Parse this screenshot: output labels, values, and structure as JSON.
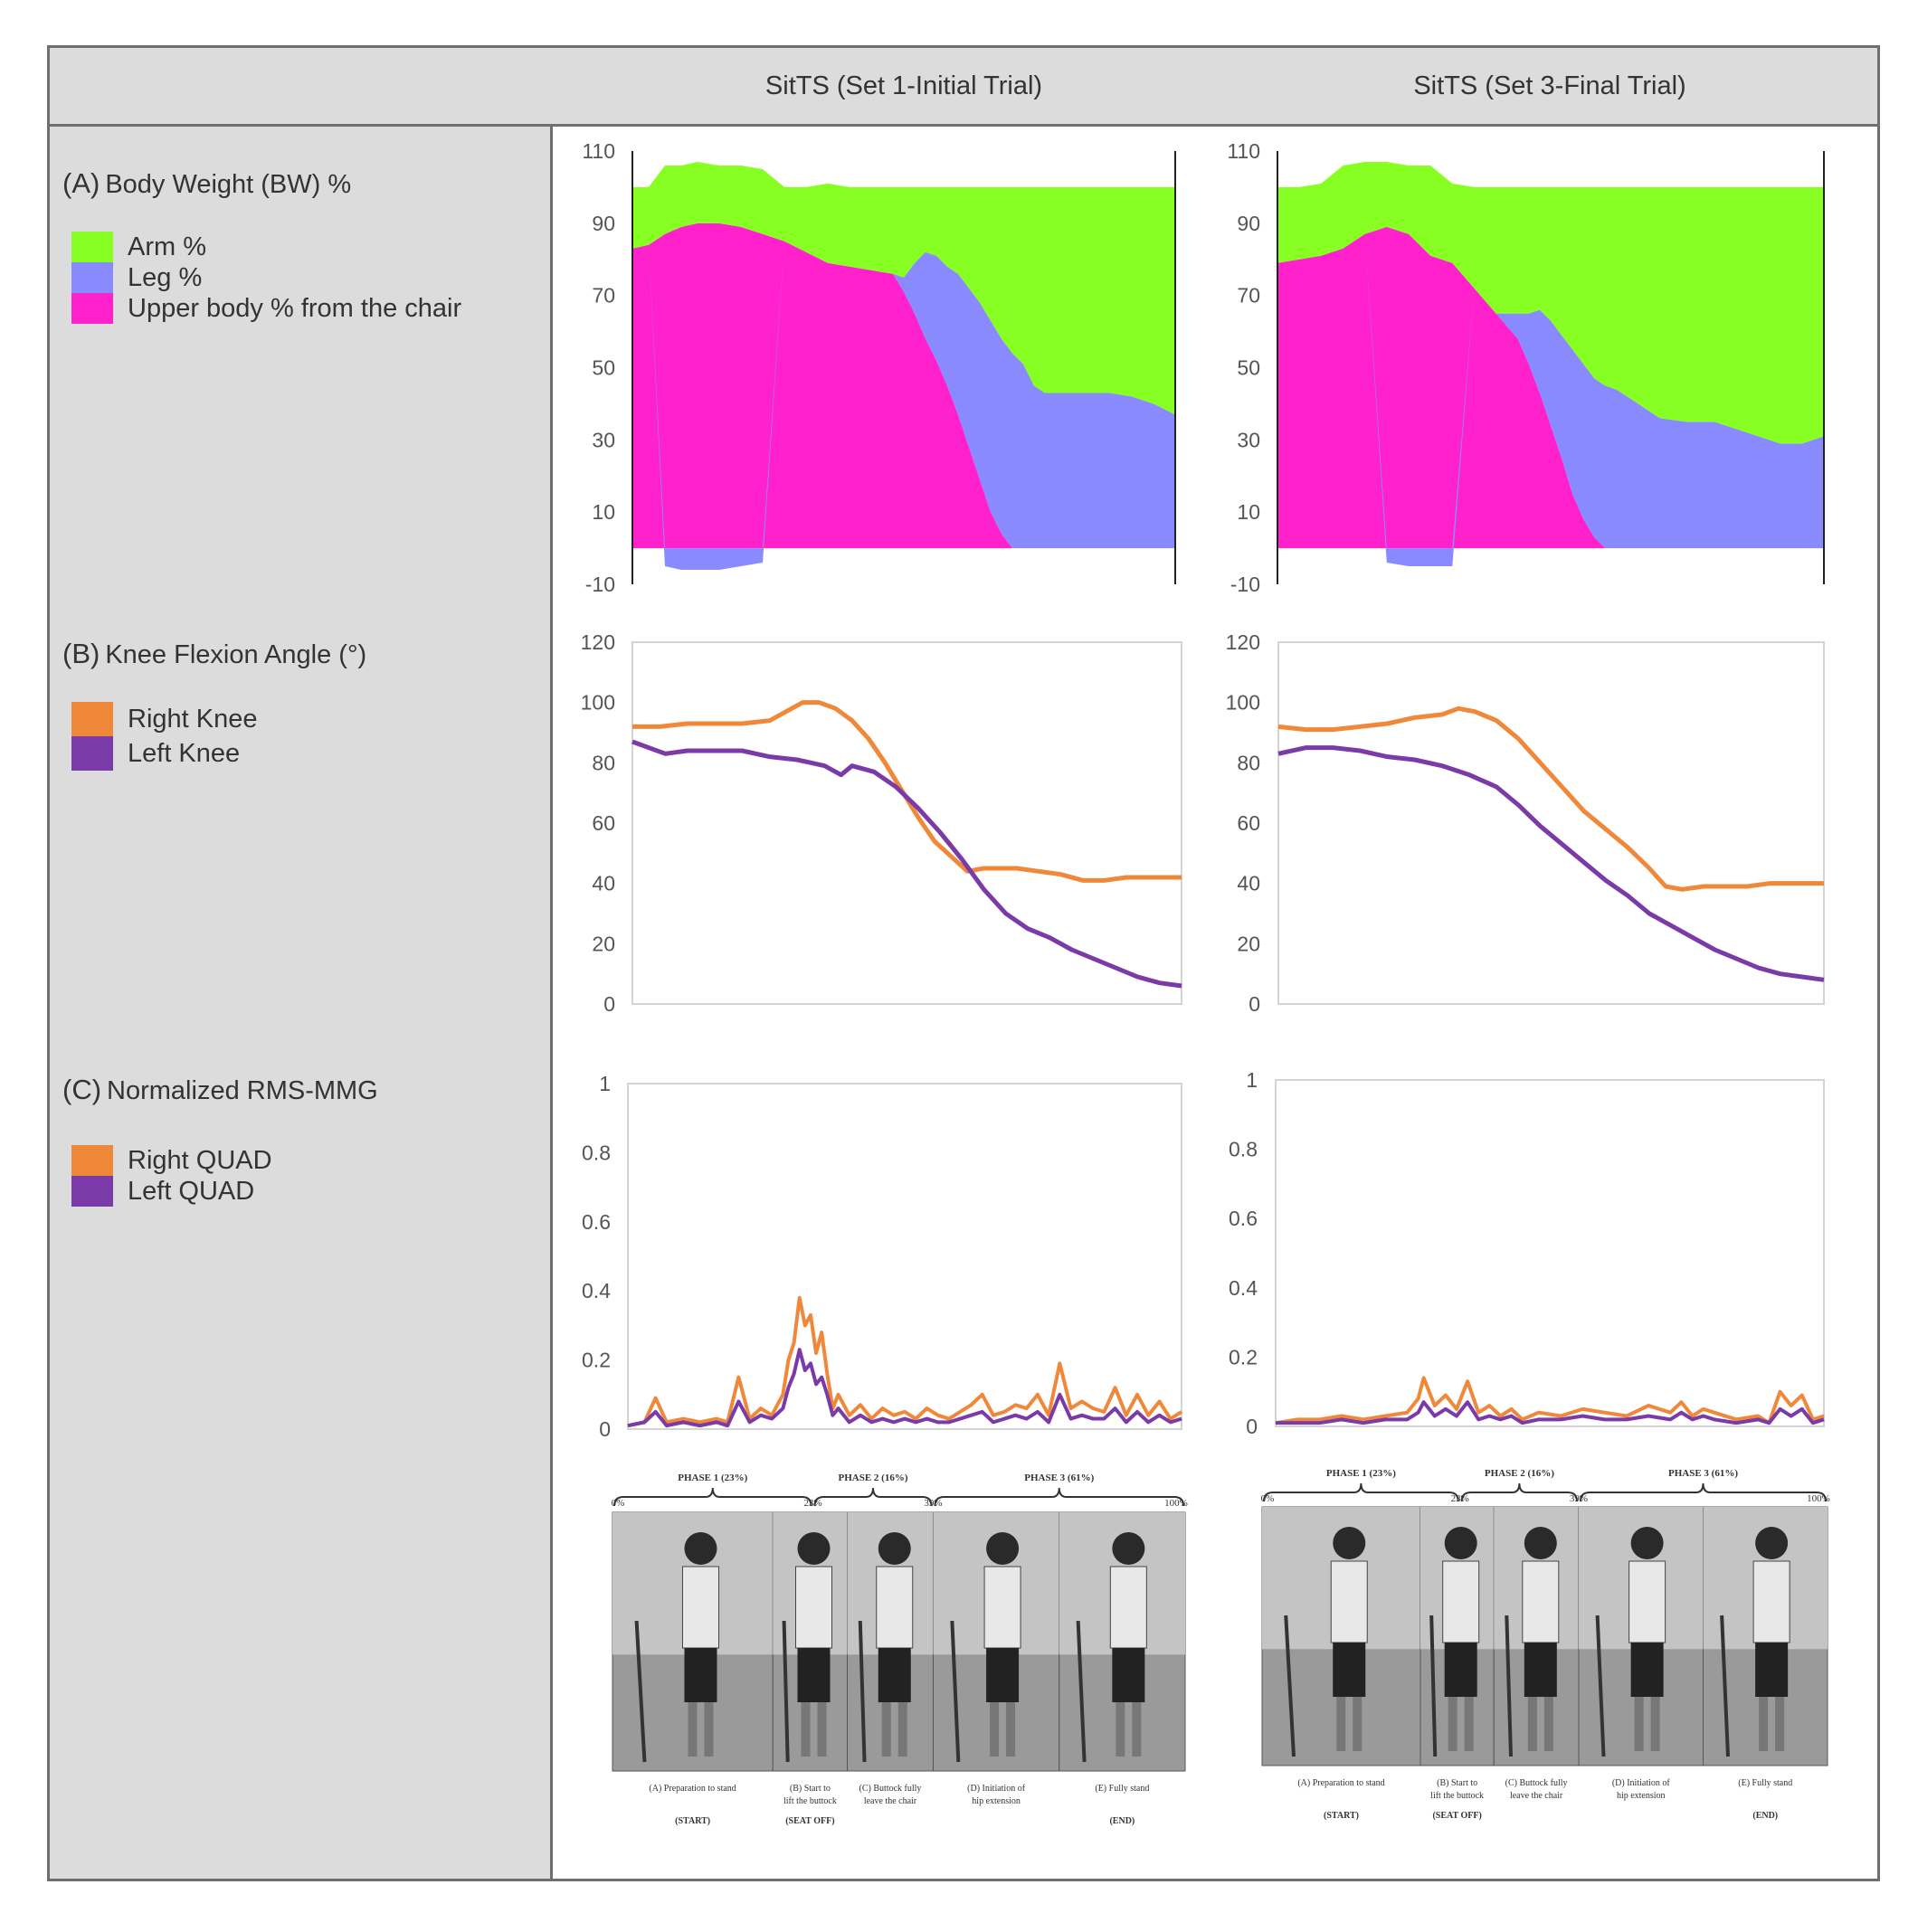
{
  "header": {
    "col1": "SitTS (Set 1-Initial Trial)",
    "col2": "SitTS (Set 3-Final Trial)"
  },
  "panels": {
    "a": {
      "label": "(A)",
      "title": "Body Weight (BW) %",
      "legend": [
        {
          "name": "Arm %",
          "color": "#88ff22"
        },
        {
          "name": "Leg %",
          "color": "#8a8aff"
        },
        {
          "name": "Upper body %  from the chair",
          "color": "#ff22cc"
        }
      ]
    },
    "b": {
      "label": "(B)",
      "title": "Knee Flexion Angle (°)",
      "legend": [
        {
          "name": "Right Knee",
          "color": "#f0883a"
        },
        {
          "name": "Left Knee",
          "color": "#7a3aa8"
        }
      ]
    },
    "c": {
      "label": "(C)",
      "title": "Normalized RMS-MMG",
      "legend": [
        {
          "name": "Right QUAD",
          "color": "#f0883a"
        },
        {
          "name": "Left QUAD",
          "color": "#7a3aa8"
        }
      ]
    }
  },
  "chart_data": [
    {
      "id": "bw_set1",
      "type": "area",
      "stacked": true,
      "ylim": [
        -10,
        110
      ],
      "yticks": [
        -10,
        10,
        30,
        50,
        70,
        90,
        110
      ],
      "x": [
        0,
        3,
        6,
        9,
        12,
        16,
        20,
        24,
        28,
        32,
        36,
        40,
        44,
        48,
        50,
        52,
        54,
        56,
        58,
        60,
        62,
        64,
        66,
        68,
        70,
        72,
        74,
        76,
        80,
        84,
        88,
        92,
        96,
        100
      ],
      "series": [
        {
          "name": "Upper body %  from the chair",
          "color": "#ff22cc",
          "values": [
            83,
            84,
            87,
            89,
            90,
            90,
            89,
            87,
            85,
            82,
            79,
            78,
            77,
            76,
            71,
            65,
            58,
            52,
            45,
            37,
            28,
            19,
            10,
            4,
            0,
            0,
            0,
            0,
            0,
            0,
            0,
            0,
            0,
            0
          ]
        },
        {
          "name": "Leg %",
          "color": "#8a8aff",
          "values": [
            0,
            0,
            -5,
            -6,
            -6,
            -6,
            -5,
            -4,
            0,
            0,
            0,
            0,
            0,
            0,
            4,
            14,
            24,
            29,
            33,
            39,
            44,
            49,
            53,
            54,
            54,
            51,
            45,
            43,
            43,
            43,
            43,
            42,
            40,
            37
          ]
        },
        {
          "name": "Arm %",
          "color": "#88ff22",
          "values": [
            17,
            16,
            19,
            17,
            17,
            16,
            17,
            18,
            15,
            18,
            22,
            22,
            23,
            24,
            25,
            21,
            18,
            19,
            22,
            24,
            28,
            32,
            37,
            42,
            46,
            49,
            55,
            57,
            57,
            57,
            57,
            58,
            60,
            63
          ]
        }
      ]
    },
    {
      "id": "bw_set3",
      "type": "area",
      "stacked": true,
      "ylim": [
        -10,
        110
      ],
      "yticks": [
        -10,
        10,
        30,
        50,
        70,
        90,
        110
      ],
      "x": [
        0,
        4,
        8,
        12,
        16,
        20,
        24,
        28,
        32,
        36,
        40,
        44,
        46,
        48,
        50,
        52,
        54,
        56,
        58,
        60,
        62,
        64,
        66,
        70,
        75,
        80,
        84,
        88,
        92,
        96,
        100
      ],
      "series": [
        {
          "name": "Upper body %  from the chair",
          "color": "#ff22cc",
          "values": [
            79,
            80,
            81,
            83,
            87,
            89,
            87,
            81,
            79,
            72,
            65,
            58,
            51,
            43,
            34,
            25,
            15,
            8,
            3,
            0,
            0,
            0,
            0,
            0,
            0,
            0,
            0,
            0,
            0,
            0,
            0
          ]
        },
        {
          "name": "Leg %",
          "color": "#8a8aff",
          "values": [
            0,
            0,
            0,
            0,
            0,
            -4,
            -5,
            -5,
            -5,
            0,
            0,
            7,
            14,
            23,
            29,
            34,
            40,
            43,
            44,
            45,
            44,
            42,
            40,
            36,
            35,
            35,
            33,
            31,
            29,
            29,
            31
          ]
        },
        {
          "name": "Arm %",
          "color": "#88ff22",
          "values": [
            21,
            20,
            20,
            23,
            20,
            18,
            19,
            25,
            22,
            28,
            35,
            35,
            35,
            34,
            37,
            41,
            45,
            49,
            53,
            55,
            56,
            58,
            60,
            64,
            65,
            65,
            67,
            69,
            71,
            71,
            69
          ]
        }
      ]
    },
    {
      "id": "knee_set1",
      "type": "line",
      "ylim": [
        0,
        120
      ],
      "yticks": [
        0,
        20,
        40,
        60,
        80,
        100,
        120
      ],
      "series": [
        {
          "name": "Right Knee",
          "color": "#f0883a",
          "x": [
            0,
            5,
            10,
            15,
            20,
            25,
            28,
            31,
            34,
            37,
            40,
            43,
            46,
            49,
            52,
            55,
            58,
            61,
            64,
            67,
            70,
            74,
            78,
            82,
            86,
            90,
            94,
            97,
            100
          ],
          "values": [
            92,
            92,
            93,
            93,
            93,
            94,
            97,
            100,
            100,
            98,
            94,
            88,
            80,
            71,
            62,
            54,
            49,
            44,
            45,
            45,
            45,
            44,
            43,
            41,
            41,
            42,
            42,
            42,
            42
          ]
        },
        {
          "name": "Left Knee",
          "color": "#7a3aa8",
          "x": [
            0,
            3,
            6,
            10,
            15,
            20,
            25,
            30,
            35,
            38,
            40,
            44,
            48,
            52,
            56,
            60,
            64,
            68,
            72,
            76,
            80,
            84,
            88,
            92,
            96,
            100
          ],
          "values": [
            87,
            85,
            83,
            84,
            84,
            84,
            82,
            81,
            79,
            76,
            79,
            77,
            72,
            65,
            57,
            48,
            38,
            30,
            25,
            22,
            18,
            15,
            12,
            9,
            7,
            6
          ]
        }
      ]
    },
    {
      "id": "knee_set3",
      "type": "line",
      "ylim": [
        0,
        120
      ],
      "yticks": [
        0,
        20,
        40,
        60,
        80,
        100,
        120
      ],
      "series": [
        {
          "name": "Right Knee",
          "color": "#f0883a",
          "x": [
            0,
            5,
            10,
            15,
            20,
            25,
            30,
            33,
            36,
            40,
            44,
            48,
            52,
            56,
            60,
            64,
            68,
            71,
            74,
            78,
            82,
            86,
            90,
            95,
            100
          ],
          "values": [
            92,
            91,
            91,
            92,
            93,
            95,
            96,
            98,
            97,
            94,
            88,
            80,
            72,
            64,
            58,
            52,
            45,
            39,
            38,
            39,
            39,
            39,
            40,
            40,
            40
          ]
        },
        {
          "name": "Left Knee",
          "color": "#7a3aa8",
          "x": [
            0,
            5,
            10,
            15,
            20,
            25,
            30,
            35,
            40,
            44,
            48,
            52,
            56,
            60,
            64,
            68,
            72,
            76,
            80,
            84,
            88,
            92,
            96,
            100
          ],
          "values": [
            83,
            85,
            85,
            84,
            82,
            81,
            79,
            76,
            72,
            66,
            59,
            53,
            47,
            41,
            36,
            30,
            26,
            22,
            18,
            15,
            12,
            10,
            9,
            8
          ]
        }
      ]
    },
    {
      "id": "mmg_set1",
      "type": "line",
      "ylim": [
        0,
        1
      ],
      "yticks": [
        0,
        0.2,
        0.4,
        0.6,
        0.8,
        1
      ],
      "series": [
        {
          "name": "Right QUAD",
          "color": "#f0883a",
          "x": [
            0,
            3,
            5,
            7,
            10,
            13,
            16,
            18,
            20,
            22,
            24,
            26,
            28,
            29,
            30,
            31,
            32,
            33,
            34,
            35,
            36,
            37,
            38,
            40,
            42,
            44,
            46,
            48,
            50,
            52,
            54,
            56,
            58,
            60,
            62,
            64,
            66,
            68,
            70,
            72,
            74,
            76,
            78,
            80,
            82,
            84,
            86,
            88,
            90,
            92,
            94,
            96,
            98,
            100
          ],
          "values": [
            0.01,
            0.02,
            0.09,
            0.02,
            0.03,
            0.02,
            0.03,
            0.02,
            0.15,
            0.03,
            0.06,
            0.04,
            0.1,
            0.2,
            0.25,
            0.38,
            0.3,
            0.33,
            0.22,
            0.28,
            0.16,
            0.06,
            0.1,
            0.04,
            0.07,
            0.03,
            0.06,
            0.04,
            0.05,
            0.03,
            0.06,
            0.04,
            0.03,
            0.05,
            0.07,
            0.1,
            0.04,
            0.05,
            0.07,
            0.06,
            0.1,
            0.04,
            0.19,
            0.06,
            0.08,
            0.06,
            0.05,
            0.12,
            0.04,
            0.1,
            0.04,
            0.08,
            0.03,
            0.05
          ]
        },
        {
          "name": "Left QUAD",
          "color": "#7a3aa8",
          "x": [
            0,
            3,
            5,
            7,
            10,
            13,
            16,
            18,
            20,
            22,
            24,
            26,
            28,
            29,
            30,
            31,
            32,
            33,
            34,
            35,
            36,
            37,
            38,
            40,
            42,
            44,
            46,
            48,
            50,
            52,
            54,
            56,
            58,
            60,
            62,
            64,
            66,
            68,
            70,
            72,
            74,
            76,
            78,
            80,
            82,
            84,
            86,
            88,
            90,
            92,
            94,
            96,
            98,
            100
          ],
          "values": [
            0.01,
            0.02,
            0.05,
            0.01,
            0.02,
            0.01,
            0.02,
            0.01,
            0.08,
            0.02,
            0.04,
            0.03,
            0.06,
            0.12,
            0.16,
            0.23,
            0.17,
            0.19,
            0.13,
            0.15,
            0.1,
            0.04,
            0.06,
            0.02,
            0.04,
            0.02,
            0.03,
            0.02,
            0.03,
            0.02,
            0.03,
            0.02,
            0.02,
            0.03,
            0.04,
            0.05,
            0.02,
            0.03,
            0.04,
            0.03,
            0.05,
            0.02,
            0.1,
            0.03,
            0.04,
            0.03,
            0.03,
            0.06,
            0.02,
            0.05,
            0.02,
            0.04,
            0.02,
            0.03
          ]
        }
      ]
    },
    {
      "id": "mmg_set3",
      "type": "line",
      "ylim": [
        0,
        1
      ],
      "yticks": [
        0,
        0.2,
        0.4,
        0.6,
        0.8,
        1
      ],
      "series": [
        {
          "name": "Right QUAD",
          "color": "#f0883a",
          "x": [
            0,
            4,
            8,
            12,
            16,
            20,
            24,
            26,
            27,
            29,
            31,
            33,
            35,
            37,
            39,
            41,
            43,
            45,
            48,
            52,
            56,
            60,
            64,
            68,
            72,
            74,
            76,
            78,
            80,
            84,
            88,
            90,
            92,
            94,
            96,
            98,
            100
          ],
          "values": [
            0.01,
            0.02,
            0.02,
            0.03,
            0.02,
            0.03,
            0.04,
            0.08,
            0.14,
            0.06,
            0.09,
            0.05,
            0.13,
            0.04,
            0.06,
            0.03,
            0.05,
            0.02,
            0.04,
            0.03,
            0.05,
            0.04,
            0.03,
            0.06,
            0.04,
            0.07,
            0.03,
            0.05,
            0.04,
            0.02,
            0.03,
            0.01,
            0.1,
            0.06,
            0.09,
            0.02,
            0.03
          ]
        },
        {
          "name": "Left QUAD",
          "color": "#7a3aa8",
          "x": [
            0,
            4,
            8,
            12,
            16,
            20,
            24,
            26,
            27,
            29,
            31,
            33,
            35,
            37,
            39,
            41,
            43,
            45,
            48,
            52,
            56,
            60,
            64,
            68,
            72,
            74,
            76,
            78,
            80,
            84,
            88,
            90,
            92,
            94,
            96,
            98,
            100
          ],
          "values": [
            0.01,
            0.01,
            0.01,
            0.02,
            0.01,
            0.02,
            0.02,
            0.04,
            0.07,
            0.03,
            0.05,
            0.03,
            0.07,
            0.02,
            0.03,
            0.02,
            0.03,
            0.01,
            0.02,
            0.02,
            0.03,
            0.02,
            0.02,
            0.03,
            0.02,
            0.04,
            0.02,
            0.03,
            0.02,
            0.01,
            0.02,
            0.01,
            0.05,
            0.03,
            0.05,
            0.01,
            0.02
          ]
        }
      ]
    }
  ],
  "phase_strip": {
    "phases": [
      "PHASE 1 (23%)",
      "PHASE 2 (16%)",
      "PHASE 3 (61%)"
    ],
    "percents": [
      "0%",
      "23%",
      "39%",
      "100%"
    ],
    "captions": [
      "(A) Preparation to stand",
      "(B) Start to lift the buttock",
      "(C) Buttock fully leave the chair",
      "(D) Initiation of hip extension",
      "(E) Fully stand"
    ],
    "markers": [
      "(START)",
      "(SEAT OFF)",
      "(END)"
    ]
  }
}
